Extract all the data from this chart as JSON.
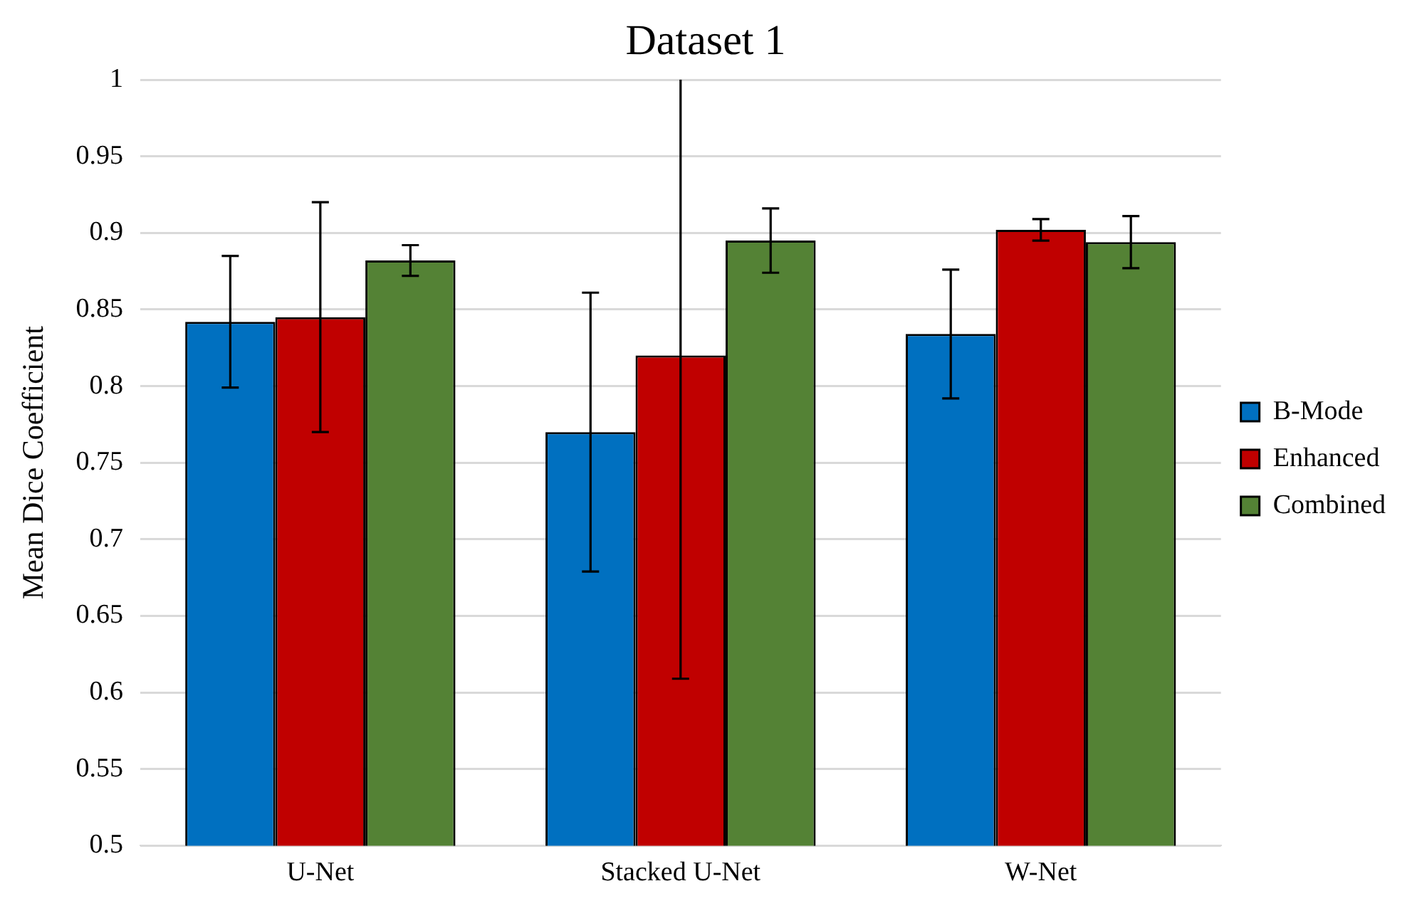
{
  "chart_data": {
    "type": "bar",
    "title": "Dataset 1",
    "ylabel": "Mean Dice Coefficient",
    "categories": [
      "U-Net",
      "Stacked U-Net",
      "W-Net"
    ],
    "series": [
      {
        "name": "B-Mode",
        "color": "#0070c0",
        "values": [
          0.842,
          0.77,
          0.834
        ],
        "errors": [
          0.043,
          0.091,
          0.042
        ]
      },
      {
        "name": "Enhanced",
        "color": "#c00000",
        "values": [
          0.845,
          0.82,
          0.902
        ],
        "errors": [
          0.075,
          [
            0.609,
            1
          ],
          0.007
        ]
      },
      {
        "name": "Combined",
        "color": "#548235",
        "values": [
          0.882,
          0.895,
          0.894
        ],
        "errors": [
          0.01,
          0.021,
          0.017
        ]
      }
    ],
    "ylim": [
      0.5,
      1
    ],
    "yticks": [
      0.5,
      0.55,
      0.6,
      0.65,
      0.7,
      0.75,
      0.8,
      0.85,
      0.9,
      0.95,
      1
    ],
    "grid": "y",
    "legend": "right"
  }
}
